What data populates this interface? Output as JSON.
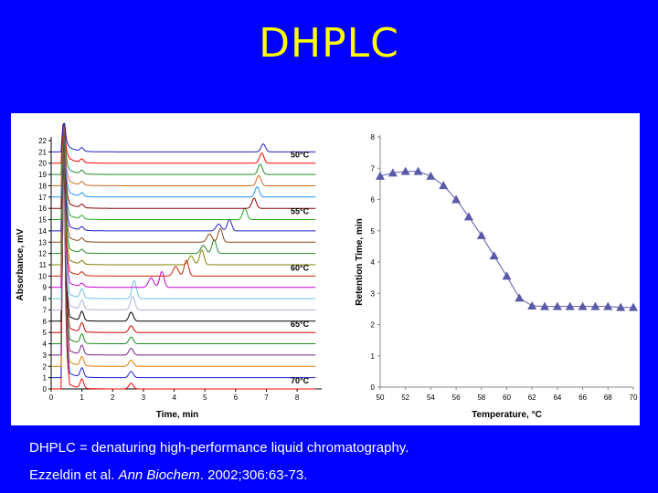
{
  "slide": {
    "title": "DHPLC"
  },
  "caption": {
    "line1": "DHPLC = denaturing high-performance liquid chromatography.",
    "line2_pre": "Ezzeldin et al. ",
    "line2_journal": "Ann Biochem",
    "line2_post": ". 2002;306:63-73."
  },
  "colors": {
    "background": "#0000ff",
    "title": "#ffff00",
    "marker": "#5a5aa8"
  },
  "chart_data": [
    {
      "type": "line",
      "title": "",
      "xlabel": "Time, min",
      "ylabel": "Absorbance, mV",
      "xlim": [
        0,
        8.8
      ],
      "ylim": [
        0,
        22
      ],
      "x_ticks": [
        "0",
        "1",
        "2",
        "3",
        "4",
        "5",
        "6",
        "7",
        "8"
      ],
      "y_ticks": [
        "0",
        "1",
        "2",
        "3",
        "4",
        "5",
        "6",
        "7",
        "8",
        "9",
        "10",
        "11",
        "12",
        "13",
        "14",
        "15",
        "16",
        "17",
        "18",
        "19",
        "20",
        "21",
        "22"
      ],
      "temperature_labels": [
        {
          "text": "50°C",
          "trace": 20
        },
        {
          "text": "55°C",
          "trace": 15
        },
        {
          "text": "60°C",
          "trace": 10
        },
        {
          "text": "65°C",
          "trace": 5
        },
        {
          "text": "70°C",
          "trace": 0
        }
      ],
      "series": [
        {
          "name": "0",
          "baseline": 0,
          "color": "#ff0000",
          "peak_time": 2.6,
          "peak_height": 0.5
        },
        {
          "name": "1",
          "baseline": 1,
          "color": "#1e1ecc",
          "peak_time": 2.6,
          "peak_height": 0.55
        },
        {
          "name": "2",
          "baseline": 2,
          "color": "#e07b00",
          "peak_time": 2.6,
          "peak_height": 0.55
        },
        {
          "name": "3",
          "baseline": 3,
          "color": "#7a1f8e",
          "peak_time": 2.6,
          "peak_height": 0.6
        },
        {
          "name": "4",
          "baseline": 4,
          "color": "#1a8a1a",
          "peak_time": 2.6,
          "peak_height": 0.6
        },
        {
          "name": "5",
          "baseline": 5,
          "color": "#cc0000",
          "peak_time": 2.6,
          "peak_height": 0.6
        },
        {
          "name": "6",
          "baseline": 6,
          "color": "#000000",
          "peak_time": 2.6,
          "peak_height": 0.8
        },
        {
          "name": "7",
          "baseline": 7,
          "color": "#b2b2e0",
          "peak_time": 2.65,
          "peak_height": 1.2
        },
        {
          "name": "8",
          "baseline": 8,
          "color": "#66c6e6",
          "peak_time": 2.7,
          "peak_height": 1.6
        },
        {
          "name": "9",
          "baseline": 9,
          "color": "#cc00cc",
          "peak_time": 3.6,
          "peak_height": 1.4
        },
        {
          "name": "10",
          "baseline": 10,
          "color": "#cc2200",
          "peak_time": 4.4,
          "peak_height": 1.4
        },
        {
          "name": "11",
          "baseline": 11,
          "color": "#808000",
          "peak_time": 4.9,
          "peak_height": 1.3
        },
        {
          "name": "12",
          "baseline": 12,
          "color": "#2a8a2a",
          "peak_time": 5.3,
          "peak_height": 1.2
        },
        {
          "name": "13",
          "baseline": 13,
          "color": "#8b4513",
          "peak_time": 5.5,
          "peak_height": 1.2
        },
        {
          "name": "14",
          "baseline": 14,
          "color": "#1e1ecc",
          "peak_time": 5.8,
          "peak_height": 1.0
        },
        {
          "name": "15",
          "baseline": 15,
          "color": "#22aa22",
          "peak_time": 6.3,
          "peak_height": 1.0
        },
        {
          "name": "16",
          "baseline": 16,
          "color": "#8b0000",
          "peak_time": 6.6,
          "peak_height": 0.9
        },
        {
          "name": "17",
          "baseline": 17,
          "color": "#1e90ff",
          "peak_time": 6.7,
          "peak_height": 0.9
        },
        {
          "name": "18",
          "baseline": 18,
          "color": "#d2691e",
          "peak_time": 6.75,
          "peak_height": 0.9
        },
        {
          "name": "19",
          "baseline": 19,
          "color": "#228b22",
          "peak_time": 6.8,
          "peak_height": 0.9
        },
        {
          "name": "20",
          "baseline": 20,
          "color": "#ff0000",
          "peak_time": 6.85,
          "peak_height": 0.9
        },
        {
          "name": "21",
          "baseline": 21,
          "color": "#1e1ecc",
          "peak_time": 6.9,
          "peak_height": 0.7
        }
      ]
    },
    {
      "type": "line",
      "title": "",
      "xlabel": "Temperature, °C",
      "ylabel": "Retention Time, min",
      "xlim": [
        50,
        70
      ],
      "ylim": [
        0,
        8
      ],
      "x_ticks": [
        "50",
        "52",
        "54",
        "56",
        "58",
        "60",
        "62",
        "64",
        "66",
        "68",
        "70"
      ],
      "y_ticks": [
        "0",
        "1",
        "2",
        "3",
        "4",
        "5",
        "6",
        "7",
        "8"
      ],
      "x": [
        50,
        51,
        52,
        53,
        54,
        55,
        56,
        57,
        58,
        59,
        60,
        61,
        62,
        63,
        64,
        65,
        66,
        67,
        68,
        69,
        70
      ],
      "values": [
        6.75,
        6.85,
        6.9,
        6.9,
        6.75,
        6.45,
        6.0,
        5.45,
        4.85,
        4.2,
        3.55,
        2.85,
        2.6,
        2.58,
        2.58,
        2.58,
        2.58,
        2.58,
        2.58,
        2.55,
        2.55
      ]
    }
  ]
}
